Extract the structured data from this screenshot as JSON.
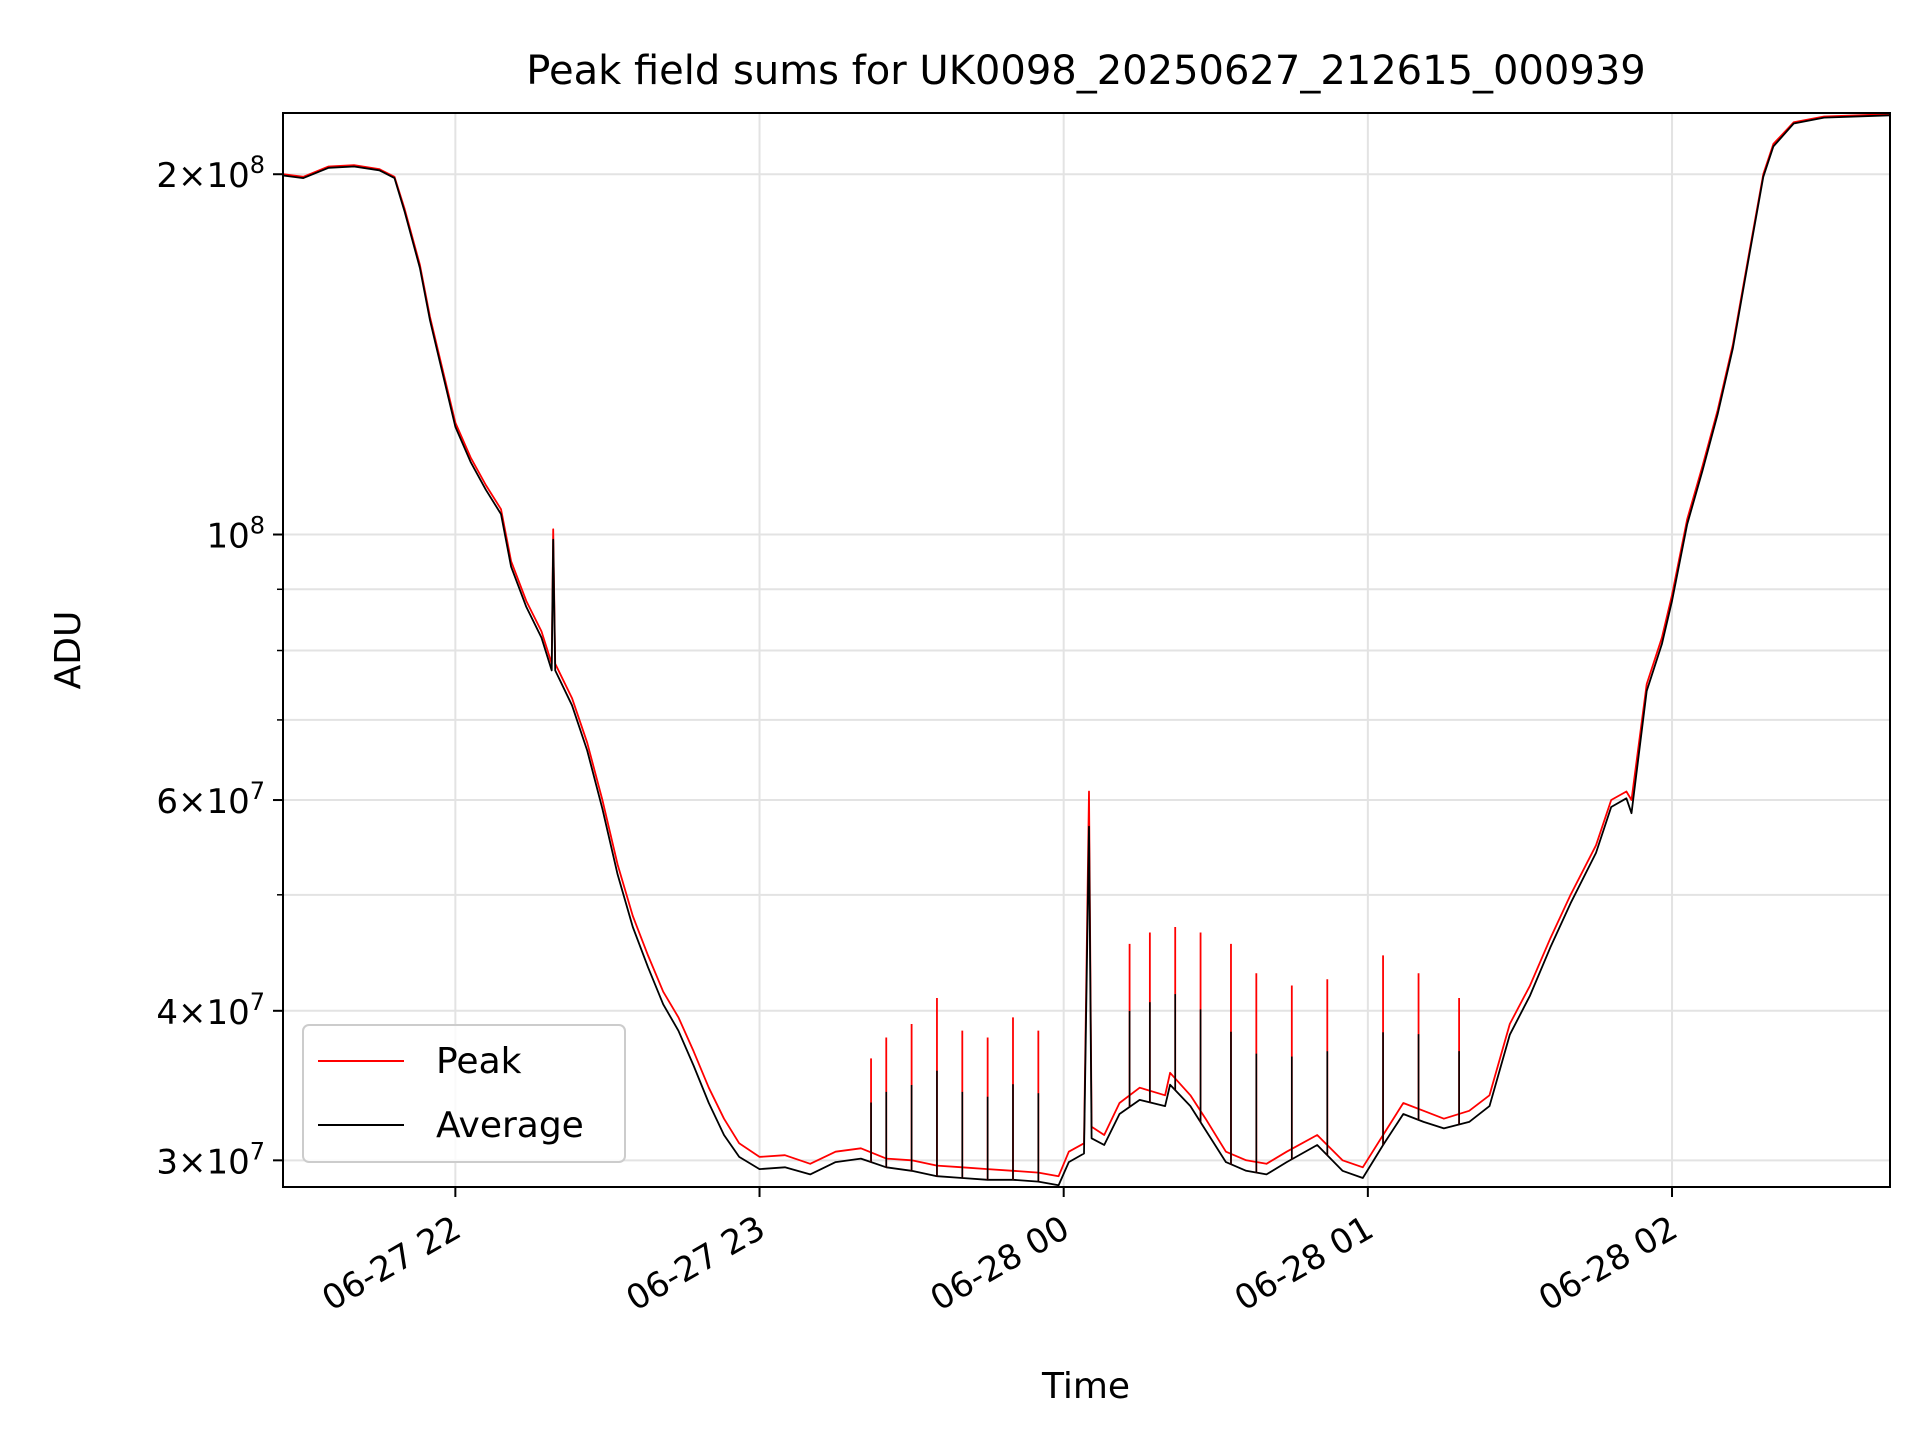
{
  "chart_data": {
    "type": "line",
    "title": "Peak field sums for UK0098_20250627_212615_000939",
    "xlabel": "Time",
    "ylabel": "ADU",
    "yscale": "log",
    "xlim": [
      "2025-06-27 21:26",
      "2025-06-28 02:43"
    ],
    "ylim": [
      28500000,
      225000000
    ],
    "x_ticks": [
      {
        "value": "2025-06-27 22:00",
        "label": "06-27 22"
      },
      {
        "value": "2025-06-27 23:00",
        "label": "06-27 23"
      },
      {
        "value": "2025-06-28 00:00",
        "label": "06-28 00"
      },
      {
        "value": "2025-06-28 01:00",
        "label": "06-28 01"
      },
      {
        "value": "2025-06-28 02:00",
        "label": "06-28 02"
      }
    ],
    "y_ticks": [
      {
        "value": 30000000,
        "label": "3×10^7",
        "mant": "3",
        "exp": "7"
      },
      {
        "value": 40000000,
        "label": "4×10^7",
        "mant": "4",
        "exp": "7"
      },
      {
        "value": 60000000,
        "label": "6×10^7",
        "mant": "6",
        "exp": "7"
      },
      {
        "value": 100000000,
        "label": "10^8",
        "mant": "",
        "exp": "8"
      },
      {
        "value": 200000000,
        "label": "2×10^8",
        "mant": "2",
        "exp": "8"
      }
    ],
    "y_minor_ticks": [
      50000000,
      70000000,
      80000000,
      90000000
    ],
    "grid": true,
    "legend_position": "lower-left",
    "series": [
      {
        "name": "Peak",
        "color": "#ff0000",
        "points": [
          [
            "2025-06-27 21:26",
            200000000
          ],
          [
            "2025-06-27 21:30",
            199000000
          ],
          [
            "2025-06-27 21:35",
            203000000
          ],
          [
            "2025-06-27 21:40",
            203500000
          ],
          [
            "2025-06-27 21:45",
            202000000
          ],
          [
            "2025-06-27 21:48",
            199000000
          ],
          [
            "2025-06-27 21:50",
            187000000
          ],
          [
            "2025-06-27 21:53",
            168000000
          ],
          [
            "2025-06-27 21:55",
            152000000
          ],
          [
            "2025-06-27 21:57",
            140000000
          ],
          [
            "2025-06-27 22:00",
            124000000
          ],
          [
            "2025-06-27 22:03",
            116000000
          ],
          [
            "2025-06-27 22:06",
            110000000
          ],
          [
            "2025-06-27 22:09",
            105000000
          ],
          [
            "2025-06-27 22:11",
            95000000
          ],
          [
            "2025-06-27 22:14",
            88000000
          ],
          [
            "2025-06-27 22:17",
            83000000
          ],
          [
            "2025-06-27 22:19",
            78000000
          ],
          [
            "2025-06-27 22:19.3",
            101000000
          ],
          [
            "2025-06-27 22:19.7",
            78000000
          ],
          [
            "2025-06-27 22:23",
            73000000
          ],
          [
            "2025-06-27 22:26",
            67000000
          ],
          [
            "2025-06-27 22:29",
            60000000
          ],
          [
            "2025-06-27 22:32",
            53000000
          ],
          [
            "2025-06-27 22:35",
            48000000
          ],
          [
            "2025-06-27 22:38",
            44500000
          ],
          [
            "2025-06-27 22:41",
            41500000
          ],
          [
            "2025-06-27 22:44",
            39500000
          ],
          [
            "2025-06-27 22:47",
            37000000
          ],
          [
            "2025-06-27 22:50",
            34500000
          ],
          [
            "2025-06-27 22:53",
            32500000
          ],
          [
            "2025-06-27 22:56",
            31000000
          ],
          [
            "2025-06-27 23:00",
            30200000
          ],
          [
            "2025-06-27 23:05",
            30300000
          ],
          [
            "2025-06-27 23:10",
            29800000
          ],
          [
            "2025-06-27 23:15",
            30500000
          ],
          [
            "2025-06-27 23:20",
            30700000
          ],
          [
            "2025-06-27 23:25",
            30100000
          ],
          [
            "2025-06-27 23:30",
            30000000
          ],
          [
            "2025-06-27 23:35",
            29700000
          ],
          [
            "2025-06-27 23:40",
            29600000
          ],
          [
            "2025-06-27 23:45",
            29500000
          ],
          [
            "2025-06-27 23:50",
            29400000
          ],
          [
            "2025-06-27 23:55",
            29300000
          ],
          [
            "2025-06-27 23:59",
            29100000
          ],
          [
            "2025-06-28 00:01",
            30500000
          ],
          [
            "2025-06-28 00:04",
            31000000
          ],
          [
            "2025-06-28 00:05",
            61000000
          ],
          [
            "2025-06-28 00:05.5",
            32000000
          ],
          [
            "2025-06-28 00:08",
            31500000
          ],
          [
            "2025-06-28 00:11",
            33500000
          ],
          [
            "2025-06-28 00:15",
            34500000
          ],
          [
            "2025-06-28 00:20",
            34000000
          ],
          [
            "2025-06-28 00:21",
            35500000
          ],
          [
            "2025-06-28 00:25",
            34000000
          ],
          [
            "2025-06-28 00:28",
            32500000
          ],
          [
            "2025-06-28 00:32",
            30500000
          ],
          [
            "2025-06-28 00:36",
            30000000
          ],
          [
            "2025-06-28 00:40",
            29800000
          ],
          [
            "2025-06-28 00:44",
            30500000
          ],
          [
            "2025-06-28 00:50",
            31500000
          ],
          [
            "2025-06-28 00:55",
            30000000
          ],
          [
            "2025-06-28 00:59",
            29600000
          ],
          [
            "2025-06-28 01:03",
            31500000
          ],
          [
            "2025-06-28 01:07",
            33500000
          ],
          [
            "2025-06-28 01:11",
            33000000
          ],
          [
            "2025-06-28 01:15",
            32500000
          ],
          [
            "2025-06-28 01:20",
            33000000
          ],
          [
            "2025-06-28 01:24",
            34000000
          ],
          [
            "2025-06-28 01:28",
            39000000
          ],
          [
            "2025-06-28 01:32",
            42000000
          ],
          [
            "2025-06-28 01:36",
            46000000
          ],
          [
            "2025-06-28 01:40",
            50000000
          ],
          [
            "2025-06-28 01:45",
            55000000
          ],
          [
            "2025-06-28 01:48",
            60000000
          ],
          [
            "2025-06-28 01:51",
            61000000
          ],
          [
            "2025-06-28 01:52",
            60000000
          ],
          [
            "2025-06-28 01:55",
            75000000
          ],
          [
            "2025-06-28 01:58",
            82000000
          ],
          [
            "2025-06-28 02:00",
            89000000
          ],
          [
            "2025-06-28 02:03",
            103000000
          ],
          [
            "2025-06-28 02:06",
            114000000
          ],
          [
            "2025-06-28 02:09",
            127000000
          ],
          [
            "2025-06-28 02:12",
            144000000
          ],
          [
            "2025-06-28 02:15",
            170000000
          ],
          [
            "2025-06-28 02:18",
            200000000
          ],
          [
            "2025-06-28 02:20",
            212000000
          ],
          [
            "2025-06-28 02:24",
            221000000
          ],
          [
            "2025-06-28 02:30",
            223500000
          ],
          [
            "2025-06-28 02:43",
            224500000
          ]
        ]
      },
      {
        "name": "Average",
        "color": "#000000",
        "points": [
          [
            "2025-06-27 21:26",
            199500000
          ],
          [
            "2025-06-27 21:30",
            198500000
          ],
          [
            "2025-06-27 21:35",
            202500000
          ],
          [
            "2025-06-27 21:40",
            203000000
          ],
          [
            "2025-06-27 21:45",
            201500000
          ],
          [
            "2025-06-27 21:48",
            198500000
          ],
          [
            "2025-06-27 21:50",
            186000000
          ],
          [
            "2025-06-27 21:53",
            167000000
          ],
          [
            "2025-06-27 21:55",
            151000000
          ],
          [
            "2025-06-27 21:57",
            139000000
          ],
          [
            "2025-06-27 22:00",
            123000000
          ],
          [
            "2025-06-27 22:03",
            115000000
          ],
          [
            "2025-06-27 22:06",
            109000000
          ],
          [
            "2025-06-27 22:09",
            104000000
          ],
          [
            "2025-06-27 22:11",
            94000000
          ],
          [
            "2025-06-27 22:14",
            87000000
          ],
          [
            "2025-06-27 22:17",
            82000000
          ],
          [
            "2025-06-27 22:19",
            77000000
          ],
          [
            "2025-06-27 22:19.3",
            99000000
          ],
          [
            "2025-06-27 22:19.7",
            77000000
          ],
          [
            "2025-06-27 22:23",
            72000000
          ],
          [
            "2025-06-27 22:26",
            66000000
          ],
          [
            "2025-06-27 22:29",
            59000000
          ],
          [
            "2025-06-27 22:32",
            52000000
          ],
          [
            "2025-06-27 22:35",
            47000000
          ],
          [
            "2025-06-27 22:38",
            43500000
          ],
          [
            "2025-06-27 22:41",
            40500000
          ],
          [
            "2025-06-27 22:44",
            38500000
          ],
          [
            "2025-06-27 22:47",
            36000000
          ],
          [
            "2025-06-27 22:50",
            33500000
          ],
          [
            "2025-06-27 22:53",
            31500000
          ],
          [
            "2025-06-27 22:56",
            30200000
          ],
          [
            "2025-06-27 23:00",
            29500000
          ],
          [
            "2025-06-27 23:05",
            29600000
          ],
          [
            "2025-06-27 23:10",
            29200000
          ],
          [
            "2025-06-27 23:15",
            29900000
          ],
          [
            "2025-06-27 23:20",
            30100000
          ],
          [
            "2025-06-27 23:25",
            29600000
          ],
          [
            "2025-06-27 23:30",
            29400000
          ],
          [
            "2025-06-27 23:35",
            29100000
          ],
          [
            "2025-06-27 23:40",
            29000000
          ],
          [
            "2025-06-27 23:45",
            28900000
          ],
          [
            "2025-06-27 23:50",
            28900000
          ],
          [
            "2025-06-27 23:55",
            28800000
          ],
          [
            "2025-06-27 23:59",
            28600000
          ],
          [
            "2025-06-28 00:01",
            29900000
          ],
          [
            "2025-06-28 00:04",
            30400000
          ],
          [
            "2025-06-28 00:05",
            57000000
          ],
          [
            "2025-06-28 00:05.5",
            31300000
          ],
          [
            "2025-06-28 00:08",
            30900000
          ],
          [
            "2025-06-28 00:11",
            32800000
          ],
          [
            "2025-06-28 00:15",
            33700000
          ],
          [
            "2025-06-28 00:20",
            33300000
          ],
          [
            "2025-06-28 00:21",
            34700000
          ],
          [
            "2025-06-28 00:25",
            33300000
          ],
          [
            "2025-06-28 00:28",
            31800000
          ],
          [
            "2025-06-28 00:32",
            29900000
          ],
          [
            "2025-06-28 00:36",
            29400000
          ],
          [
            "2025-06-28 00:40",
            29200000
          ],
          [
            "2025-06-28 00:44",
            29900000
          ],
          [
            "2025-06-28 00:50",
            30900000
          ],
          [
            "2025-06-28 00:55",
            29400000
          ],
          [
            "2025-06-28 00:59",
            29000000
          ],
          [
            "2025-06-28 01:03",
            30900000
          ],
          [
            "2025-06-28 01:07",
            32800000
          ],
          [
            "2025-06-28 01:11",
            32300000
          ],
          [
            "2025-06-28 01:15",
            31900000
          ],
          [
            "2025-06-28 01:20",
            32300000
          ],
          [
            "2025-06-28 01:24",
            33300000
          ],
          [
            "2025-06-28 01:28",
            38200000
          ],
          [
            "2025-06-28 01:32",
            41200000
          ],
          [
            "2025-06-28 01:36",
            45200000
          ],
          [
            "2025-06-28 01:40",
            49200000
          ],
          [
            "2025-06-28 01:45",
            54200000
          ],
          [
            "2025-06-28 01:48",
            59200000
          ],
          [
            "2025-06-28 01:51",
            60200000
          ],
          [
            "2025-06-28 01:52",
            58500000
          ],
          [
            "2025-06-28 01:55",
            74000000
          ],
          [
            "2025-06-28 01:58",
            81000000
          ],
          [
            "2025-06-28 02:00",
            88000000
          ],
          [
            "2025-06-28 02:03",
            102000000
          ],
          [
            "2025-06-28 02:06",
            113000000
          ],
          [
            "2025-06-28 02:09",
            126000000
          ],
          [
            "2025-06-28 02:12",
            143000000
          ],
          [
            "2025-06-28 02:15",
            169000000
          ],
          [
            "2025-06-28 02:18",
            199000000
          ],
          [
            "2025-06-28 02:20",
            211000000
          ],
          [
            "2025-06-28 02:24",
            220500000
          ],
          [
            "2025-06-28 02:30",
            223000000
          ],
          [
            "2025-06-28 02:43",
            224000000
          ]
        ]
      }
    ],
    "spikes": [
      {
        "series": "Peak",
        "time": "2025-06-27 23:22",
        "value": 36500000
      },
      {
        "series": "Peak",
        "time": "2025-06-27 23:25",
        "value": 38000000
      },
      {
        "series": "Peak",
        "time": "2025-06-27 23:30",
        "value": 39000000
      },
      {
        "series": "Peak",
        "time": "2025-06-27 23:35",
        "value": 41000000
      },
      {
        "series": "Peak",
        "time": "2025-06-27 23:40",
        "value": 38500000
      },
      {
        "series": "Peak",
        "time": "2025-06-27 23:45",
        "value": 38000000
      },
      {
        "series": "Peak",
        "time": "2025-06-27 23:50",
        "value": 39500000
      },
      {
        "series": "Peak",
        "time": "2025-06-27 23:55",
        "value": 38500000
      },
      {
        "series": "Peak",
        "time": "2025-06-28 00:13",
        "value": 45500000
      },
      {
        "series": "Peak",
        "time": "2025-06-28 00:17",
        "value": 46500000
      },
      {
        "series": "Peak",
        "time": "2025-06-28 00:22",
        "value": 47000000
      },
      {
        "series": "Peak",
        "time": "2025-06-28 00:27",
        "value": 46500000
      },
      {
        "series": "Peak",
        "time": "2025-06-28 00:33",
        "value": 45500000
      },
      {
        "series": "Peak",
        "time": "2025-06-28 00:38",
        "value": 43000000
      },
      {
        "series": "Peak",
        "time": "2025-06-28 00:45",
        "value": 42000000
      },
      {
        "series": "Peak",
        "time": "2025-06-28 00:52",
        "value": 42500000
      },
      {
        "series": "Peak",
        "time": "2025-06-28 01:03",
        "value": 44500000
      },
      {
        "series": "Peak",
        "time": "2025-06-28 01:10",
        "value": 43000000
      },
      {
        "series": "Peak",
        "time": "2025-06-28 01:18",
        "value": 41000000
      }
    ],
    "legend": [
      {
        "label": "Peak",
        "color": "#ff0000"
      },
      {
        "label": "Average",
        "color": "#000000"
      }
    ]
  }
}
